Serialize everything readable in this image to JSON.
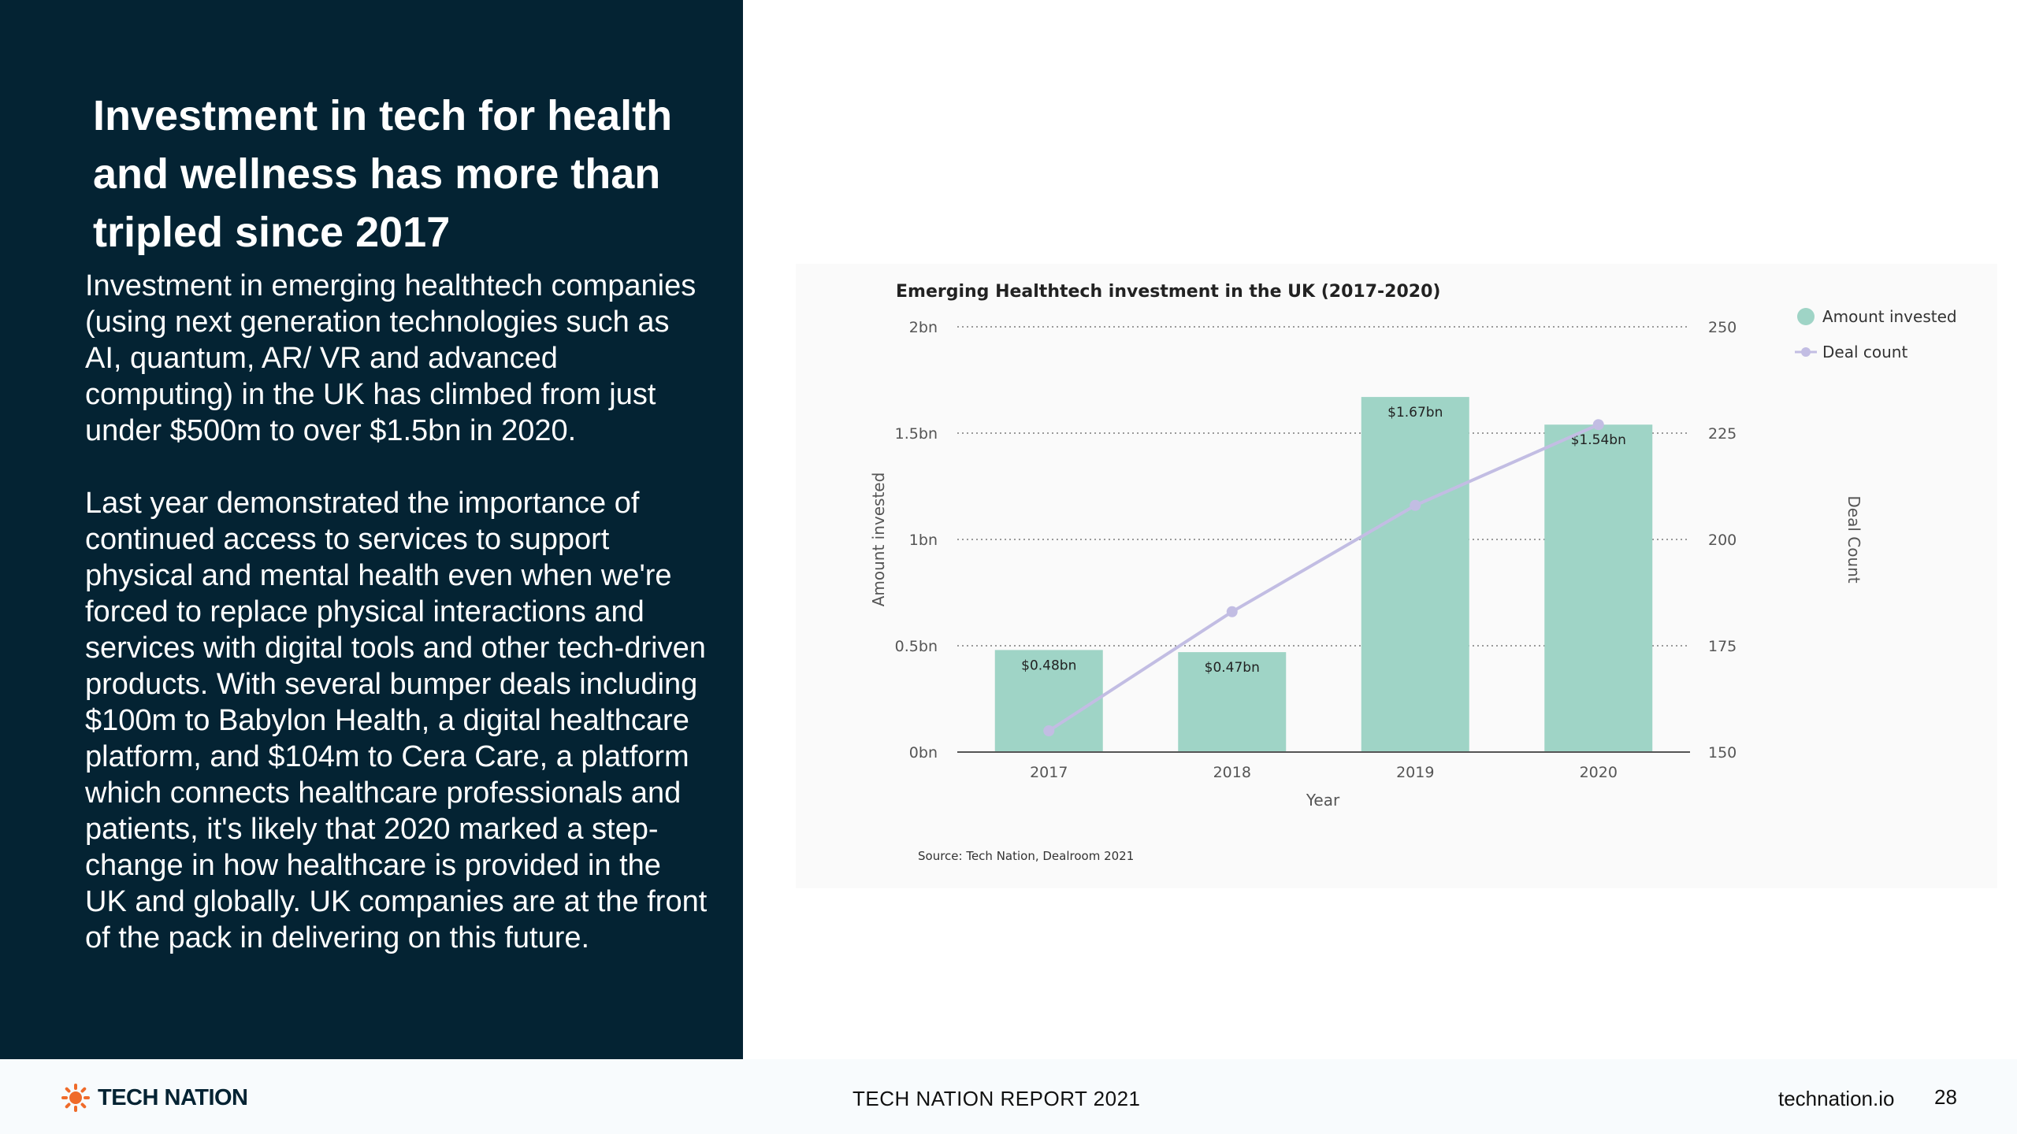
{
  "slide": {
    "headline": "Investment in tech for health and wellness has more than tripled since 2017",
    "paragraph_1": "Investment in emerging healthtech companies (using next generation technologies such as AI, quantum, AR/ VR and advanced computing) in the UK has climbed from just under $500m to over $1.5bn in 2020.",
    "paragraph_2": "Last year demonstrated the importance of continued access to services to support physical and mental health even when we're forced to replace physical interactions and services with digital tools and other tech-driven products. With several bumper deals including $100m to Babylon Health, a digital healthcare platform, and $104m to Cera Care, a platform which connects healthcare professionals and patients, it's likely that 2020 marked a step-change in how healthcare is provided in the UK and globally. UK companies are at the front of the pack in delivering on this future."
  },
  "footer": {
    "logo_text": "TECH NATION",
    "report_title": "TECH NATION REPORT 2021",
    "site_url": "technation.io",
    "page_number": "28"
  },
  "colors": {
    "panel": "#042333",
    "bar": "#9fd4c6",
    "line": "#c2bde3",
    "logo_orange": "#ef6b2a"
  },
  "chart_data": {
    "type": "bar",
    "title": "Emerging Healthtech investment in the UK (2017-2020)",
    "categories": [
      "2017",
      "2018",
      "2019",
      "2020"
    ],
    "series": [
      {
        "name": "Amount invested",
        "kind": "bar",
        "axis": "left",
        "values": [
          0.48,
          0.47,
          1.67,
          1.54
        ],
        "labels": [
          "$0.48bn",
          "$0.47bn",
          "$1.67bn",
          "$1.54bn"
        ]
      },
      {
        "name": "Deal count",
        "kind": "line",
        "axis": "right",
        "values": [
          155,
          183,
          208,
          227
        ]
      }
    ],
    "xlabel": "Year",
    "ylabel": "Amount invested",
    "y2label": "Deal Count",
    "ylim": [
      0,
      2
    ],
    "y2lim": [
      150,
      250
    ],
    "yticks": [
      0,
      0.5,
      1,
      1.5,
      2
    ],
    "ytick_labels": [
      "0bn",
      "0.5bn",
      "1bn",
      "1.5bn",
      "2bn"
    ],
    "y2ticks": [
      150,
      175,
      200,
      225,
      250
    ],
    "y2tick_labels": [
      "150",
      "175",
      "200",
      "225",
      "250"
    ],
    "grid": true,
    "legend_position": "top-right",
    "source": "Source: Tech Nation, Dealroom 2021"
  }
}
